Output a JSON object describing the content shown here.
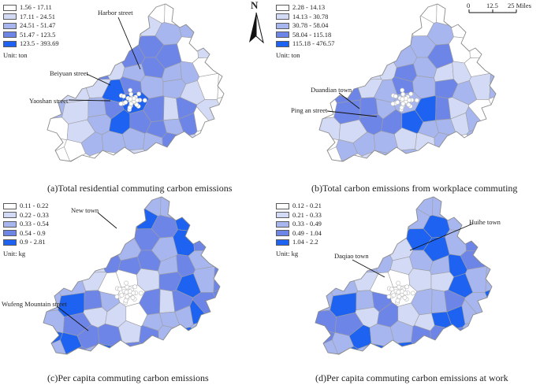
{
  "colors": {
    "c1": "#ffffff",
    "c2": "#d3daf5",
    "c3": "#a7b6ee",
    "c4": "#6e85e8",
    "c5": "#1d62f0",
    "border": "#9e9e9e",
    "centre": "#b8b8b8"
  },
  "panels": [
    {
      "id": "a",
      "caption": "(a)Total residential commuting carbon emissions",
      "legend": [
        "1.56 - 17.11",
        "17.11 - 24.51",
        "24.51 - 51.47",
        "51.47 - 123.5",
        "123.5 - 393.69"
      ],
      "unit": "Unit: ton",
      "labels": [
        "Harbor street",
        "Beiyuan street",
        "Yaoshan street"
      ]
    },
    {
      "id": "b",
      "caption": "(b)Total carbon emissions from workplace commuting",
      "legend": [
        "2.28 - 14.13",
        "14.13 - 30.78",
        "30.78 - 58.04",
        "58.04 - 115.18",
        "115.18 - 476.57"
      ],
      "unit": "Unit: ton",
      "labels": [
        "Duandian town",
        "Ping an street"
      ]
    },
    {
      "id": "c",
      "caption": "(c)Per capita commuting carbon emissions",
      "legend": [
        "0.11 - 0.22",
        "0.22 - 0.33",
        "0.33 - 0.54",
        "0.54 - 0.9",
        "0.9 - 2.81"
      ],
      "unit": "Unit: kg",
      "labels": [
        "New town",
        "Wufeng Mountain street"
      ]
    },
    {
      "id": "d",
      "caption": "(d)Per capita commuting carbon emissions at work",
      "legend": [
        "0.12 - 0.21",
        "0.21 - 0.33",
        "0.33 - 0.49",
        "0.49 - 1.04",
        "1.04 - 2.2"
      ],
      "unit": "Unit: kg",
      "labels": [
        "Huihe town",
        "Daqiao town"
      ]
    }
  ],
  "north": "N",
  "scale": {
    "ticks": [
      "0",
      "12.5",
      "25 Miles"
    ]
  }
}
